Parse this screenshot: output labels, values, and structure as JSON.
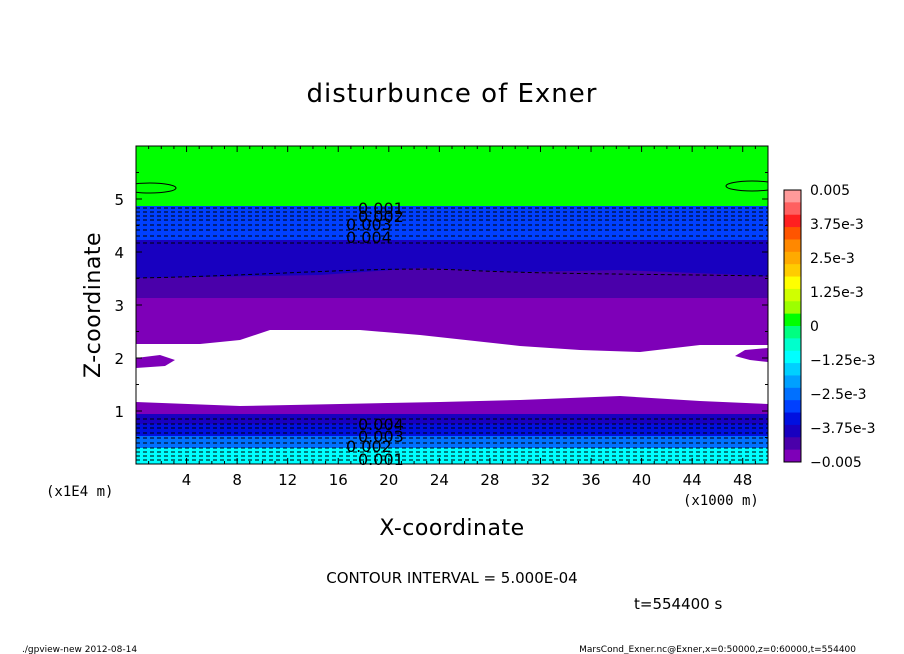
{
  "chart_data": {
    "type": "contour",
    "title": "disturbunce of Exner",
    "xlabel": "X-coordinate",
    "ylabel": "Z-coordinate",
    "x_unit": "(x1000 m)",
    "y_unit": "(x1E4 m)",
    "x_ticks": [
      4,
      8,
      12,
      16,
      20,
      24,
      28,
      32,
      36,
      40,
      44,
      48
    ],
    "y_ticks": [
      1,
      2,
      3,
      4,
      5
    ],
    "xlim": [
      0,
      50
    ],
    "ylim": [
      0,
      6
    ],
    "contour_interval_text": "CONTOUR INTERVAL = 5.000E-04",
    "time_text": "t=554400 s",
    "colorbar": {
      "min": -0.005,
      "max": 0.005,
      "labels": [
        "0.005",
        "3.75e-3",
        "2.5e-3",
        "1.25e-3",
        "0",
        "−1.25e-3",
        "−2.5e-3",
        "−3.75e-3",
        "−0.005"
      ],
      "colors": [
        "#ff9a9a",
        "#ff6060",
        "#ff2020",
        "#ff5500",
        "#ff8800",
        "#ffaa00",
        "#ffcc00",
        "#ffff00",
        "#d0ff00",
        "#9cff00",
        "#00ff00",
        "#00ff80",
        "#00ffcc",
        "#00ffff",
        "#00d0ff",
        "#00a0ff",
        "#0070ff",
        "#0040ff",
        "#0010e0",
        "#1800c0",
        "#4a00aa",
        "#7e00b8"
      ]
    },
    "contour_labels": {
      "top": [
        "0.001",
        "0.002",
        "0.003",
        "0.004"
      ],
      "bottom": [
        "0.004",
        "0.003",
        "0.002",
        "0.001"
      ]
    }
  },
  "footer": {
    "left": "./gpview-new   2012-08-14",
    "right": "MarsCond_Exner.nc@Exner,x=0:50000,z=0:60000,t=554400"
  }
}
